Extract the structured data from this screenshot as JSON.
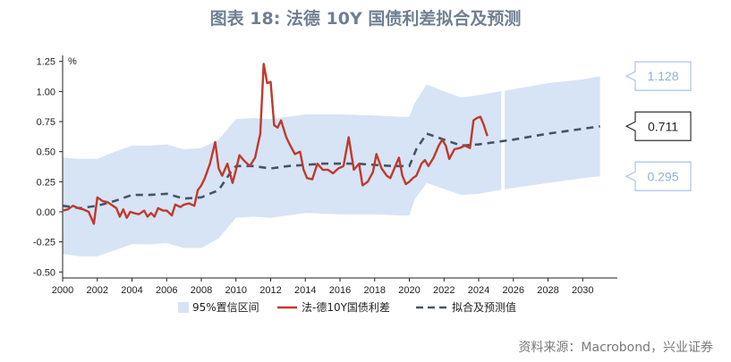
{
  "title": "图表 18: 法德 10Y 国债利差拟合及预测",
  "source": "资料来源：Macrobond，兴业证券",
  "chart_data": {
    "type": "line",
    "unit": "%",
    "xlim": [
      2000,
      2032
    ],
    "ylim": [
      -0.55,
      1.3
    ],
    "x_ticks": [
      "2000",
      "2002",
      "2004",
      "2006",
      "2008",
      "2010",
      "2012",
      "2014",
      "2016",
      "2018",
      "2020",
      "2022",
      "2024",
      "2026",
      "2028",
      "2030"
    ],
    "y_ticks": [
      "1.25",
      "1.00",
      "0.75",
      "0.50",
      "0.25",
      "0.00",
      "-0.25",
      "-0.50"
    ],
    "legend": [
      "95%置信区间",
      "法-德10Y国债利差",
      "拟合及预测值"
    ],
    "callouts": [
      "1.128",
      "0.711",
      "0.295"
    ],
    "colors": {
      "band": "#d6e4f5",
      "spread": "#c0392b",
      "fit": "#44546a"
    },
    "band": [
      {
        "x": 2000.0,
        "lo": -0.35,
        "hi": 0.45
      },
      {
        "x": 2001.0,
        "lo": -0.37,
        "hi": 0.44
      },
      {
        "x": 2002.0,
        "lo": -0.37,
        "hi": 0.44
      },
      {
        "x": 2003.0,
        "lo": -0.32,
        "hi": 0.5
      },
      {
        "x": 2004.0,
        "lo": -0.27,
        "hi": 0.55
      },
      {
        "x": 2005.0,
        "lo": -0.27,
        "hi": 0.55
      },
      {
        "x": 2006.0,
        "lo": -0.26,
        "hi": 0.56
      },
      {
        "x": 2007.0,
        "lo": -0.3,
        "hi": 0.52
      },
      {
        "x": 2008.0,
        "lo": -0.3,
        "hi": 0.53
      },
      {
        "x": 2009.0,
        "lo": -0.22,
        "hi": 0.6
      },
      {
        "x": 2010.0,
        "lo": -0.05,
        "hi": 0.77
      },
      {
        "x": 2011.0,
        "lo": -0.04,
        "hi": 0.78
      },
      {
        "x": 2012.0,
        "lo": -0.05,
        "hi": 0.77
      },
      {
        "x": 2013.0,
        "lo": -0.03,
        "hi": 0.79
      },
      {
        "x": 2014.0,
        "lo": -0.01,
        "hi": 0.81
      },
      {
        "x": 2016.0,
        "lo": -0.02,
        "hi": 0.81
      },
      {
        "x": 2018.0,
        "lo": -0.02,
        "hi": 0.8
      },
      {
        "x": 2019.5,
        "lo": -0.03,
        "hi": 0.79
      },
      {
        "x": 2020.0,
        "lo": -0.03,
        "hi": 0.79
      },
      {
        "x": 2020.3,
        "lo": 0.1,
        "hi": 0.9
      },
      {
        "x": 2021.0,
        "lo": 0.24,
        "hi": 1.06
      },
      {
        "x": 2022.0,
        "lo": 0.19,
        "hi": 1.0
      },
      {
        "x": 2023.0,
        "lo": 0.14,
        "hi": 0.95
      },
      {
        "x": 2024.0,
        "lo": 0.15,
        "hi": 0.97
      },
      {
        "x": 2025.2,
        "lo": 0.18,
        "hi": 1.0
      },
      {
        "x": 2026.0,
        "lo": 0.2,
        "hi": 1.02
      },
      {
        "x": 2028.0,
        "lo": 0.24,
        "hi": 1.07
      },
      {
        "x": 2030.0,
        "lo": 0.28,
        "hi": 1.1
      },
      {
        "x": 2031.0,
        "lo": 0.295,
        "hi": 1.128
      }
    ],
    "band_gap": [
      2025.3,
      2025.5
    ],
    "series": [
      {
        "name": "法-德10Y国债利差",
        "points": [
          [
            2000.0,
            0.01
          ],
          [
            2000.3,
            0.02
          ],
          [
            2000.6,
            0.05
          ],
          [
            2000.9,
            0.03
          ],
          [
            2001.2,
            0.02
          ],
          [
            2001.5,
            0.0
          ],
          [
            2001.8,
            -0.1
          ],
          [
            2002.0,
            0.12
          ],
          [
            2002.3,
            0.09
          ],
          [
            2002.6,
            0.08
          ],
          [
            2002.9,
            0.05
          ],
          [
            2003.1,
            0.03
          ],
          [
            2003.3,
            -0.04
          ],
          [
            2003.5,
            0.02
          ],
          [
            2003.7,
            -0.05
          ],
          [
            2003.9,
            0.0
          ],
          [
            2004.1,
            -0.01
          ],
          [
            2004.4,
            -0.02
          ],
          [
            2004.7,
            0.01
          ],
          [
            2004.9,
            -0.04
          ],
          [
            2005.1,
            -0.01
          ],
          [
            2005.3,
            -0.04
          ],
          [
            2005.5,
            0.03
          ],
          [
            2005.8,
            0.01
          ],
          [
            2006.0,
            0.01
          ],
          [
            2006.3,
            -0.03
          ],
          [
            2006.5,
            0.06
          ],
          [
            2006.8,
            0.04
          ],
          [
            2007.0,
            0.06
          ],
          [
            2007.3,
            0.07
          ],
          [
            2007.6,
            0.05
          ],
          [
            2007.8,
            0.18
          ],
          [
            2008.0,
            0.22
          ],
          [
            2008.2,
            0.28
          ],
          [
            2008.5,
            0.4
          ],
          [
            2008.8,
            0.58
          ],
          [
            2009.0,
            0.36
          ],
          [
            2009.2,
            0.3
          ],
          [
            2009.5,
            0.4
          ],
          [
            2009.8,
            0.24
          ],
          [
            2010.0,
            0.35
          ],
          [
            2010.2,
            0.47
          ],
          [
            2010.5,
            0.42
          ],
          [
            2010.8,
            0.38
          ],
          [
            2011.1,
            0.45
          ],
          [
            2011.4,
            0.65
          ],
          [
            2011.6,
            1.23
          ],
          [
            2011.8,
            1.07
          ],
          [
            2012.0,
            1.08
          ],
          [
            2012.2,
            0.72
          ],
          [
            2012.4,
            0.7
          ],
          [
            2012.6,
            0.76
          ],
          [
            2012.9,
            0.62
          ],
          [
            2013.1,
            0.56
          ],
          [
            2013.4,
            0.48
          ],
          [
            2013.7,
            0.5
          ],
          [
            2013.9,
            0.35
          ],
          [
            2014.1,
            0.28
          ],
          [
            2014.4,
            0.27
          ],
          [
            2014.7,
            0.4
          ],
          [
            2015.0,
            0.35
          ],
          [
            2015.3,
            0.35
          ],
          [
            2015.6,
            0.32
          ],
          [
            2015.9,
            0.36
          ],
          [
            2016.2,
            0.38
          ],
          [
            2016.5,
            0.62
          ],
          [
            2016.8,
            0.35
          ],
          [
            2017.1,
            0.4
          ],
          [
            2017.3,
            0.22
          ],
          [
            2017.6,
            0.25
          ],
          [
            2017.9,
            0.33
          ],
          [
            2018.1,
            0.48
          ],
          [
            2018.4,
            0.36
          ],
          [
            2018.7,
            0.3
          ],
          [
            2018.9,
            0.28
          ],
          [
            2019.1,
            0.35
          ],
          [
            2019.4,
            0.45
          ],
          [
            2019.6,
            0.3
          ],
          [
            2019.8,
            0.23
          ],
          [
            2020.0,
            0.25
          ],
          [
            2020.2,
            0.28
          ],
          [
            2020.4,
            0.3
          ],
          [
            2020.7,
            0.4
          ],
          [
            2020.9,
            0.43
          ],
          [
            2021.1,
            0.38
          ],
          [
            2021.4,
            0.45
          ],
          [
            2021.7,
            0.55
          ],
          [
            2021.9,
            0.6
          ],
          [
            2022.1,
            0.55
          ],
          [
            2022.3,
            0.44
          ],
          [
            2022.6,
            0.52
          ],
          [
            2022.9,
            0.53
          ],
          [
            2023.2,
            0.55
          ],
          [
            2023.5,
            0.53
          ],
          [
            2023.7,
            0.76
          ],
          [
            2023.9,
            0.78
          ],
          [
            2024.1,
            0.79
          ],
          [
            2024.3,
            0.72
          ],
          [
            2024.5,
            0.63
          ]
        ]
      },
      {
        "name": "拟合及预测值",
        "points": [
          [
            2000.0,
            0.05
          ],
          [
            2001.0,
            0.03
          ],
          [
            2002.0,
            0.05
          ],
          [
            2003.0,
            0.09
          ],
          [
            2004.0,
            0.14
          ],
          [
            2005.0,
            0.14
          ],
          [
            2006.0,
            0.15
          ],
          [
            2007.0,
            0.11
          ],
          [
            2008.0,
            0.12
          ],
          [
            2009.0,
            0.18
          ],
          [
            2009.7,
            0.33
          ],
          [
            2010.0,
            0.38
          ],
          [
            2011.0,
            0.38
          ],
          [
            2012.0,
            0.36
          ],
          [
            2013.0,
            0.38
          ],
          [
            2014.0,
            0.39
          ],
          [
            2015.0,
            0.4
          ],
          [
            2016.0,
            0.4
          ],
          [
            2017.0,
            0.4
          ],
          [
            2018.0,
            0.39
          ],
          [
            2019.0,
            0.38
          ],
          [
            2020.0,
            0.38
          ],
          [
            2020.4,
            0.52
          ],
          [
            2021.0,
            0.65
          ],
          [
            2022.0,
            0.6
          ],
          [
            2023.0,
            0.55
          ],
          [
            2024.0,
            0.56
          ],
          [
            2025.0,
            0.58
          ],
          [
            2026.0,
            0.6
          ],
          [
            2028.0,
            0.65
          ],
          [
            2030.0,
            0.69
          ],
          [
            2031.0,
            0.711
          ]
        ]
      }
    ]
  }
}
